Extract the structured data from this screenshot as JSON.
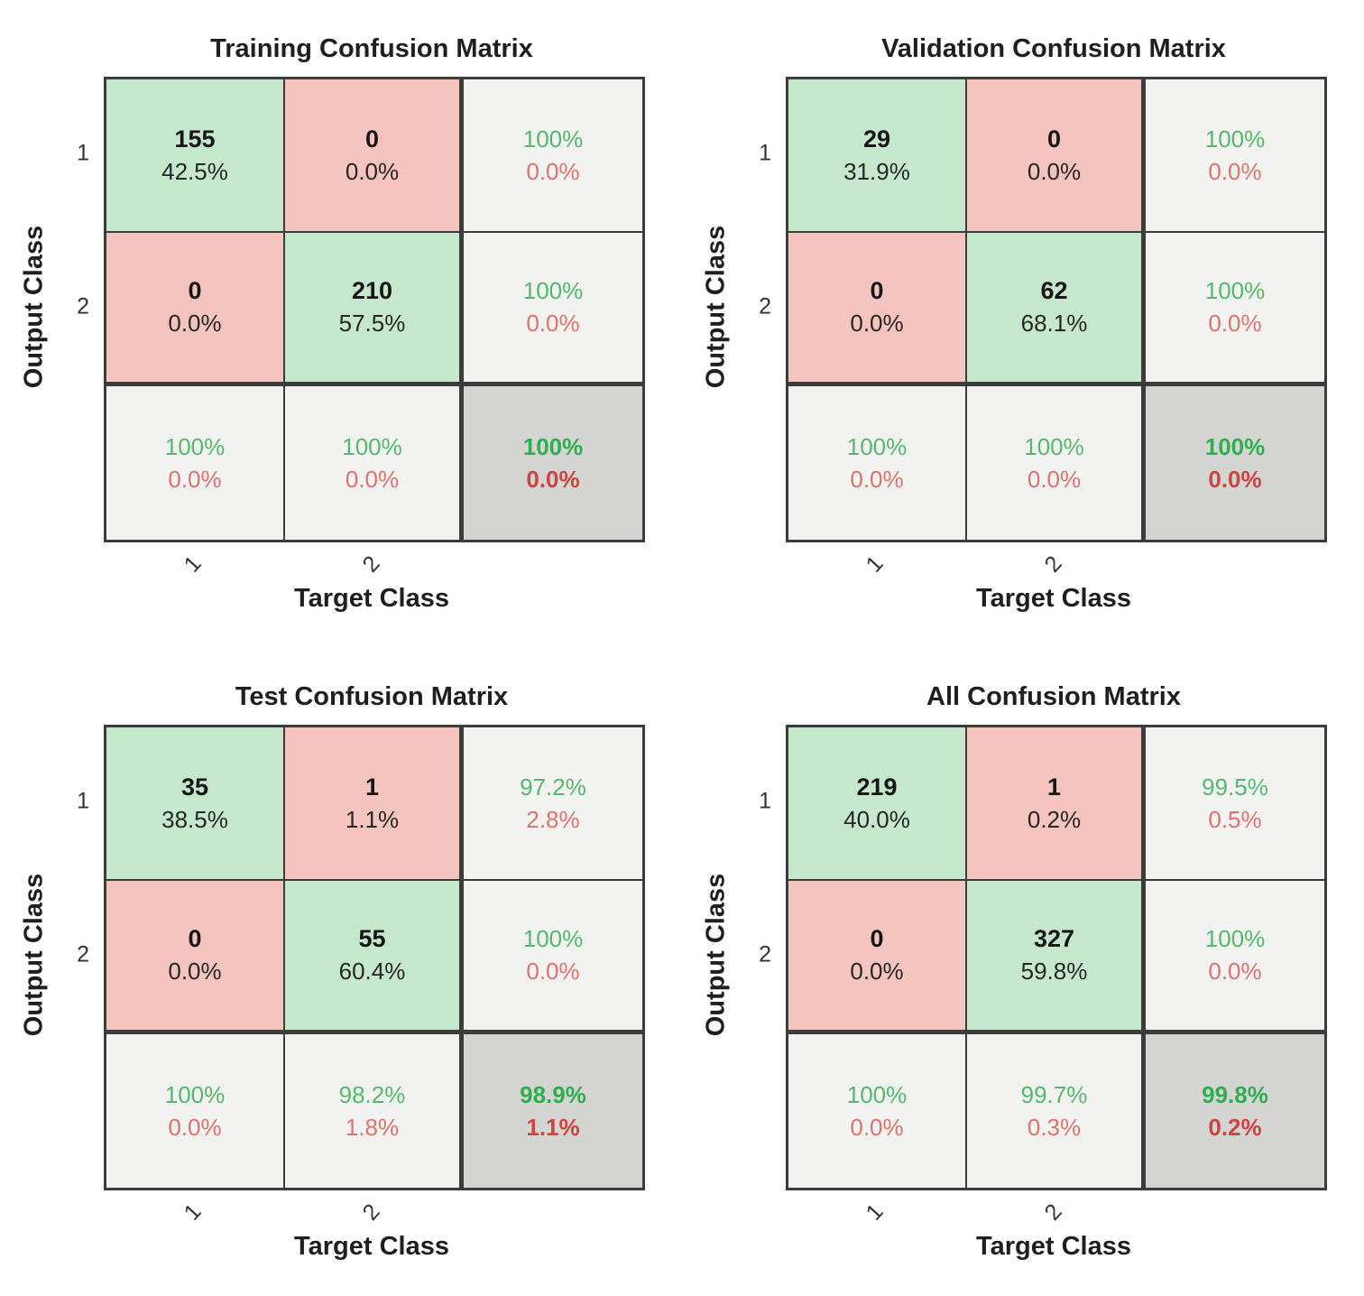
{
  "colors": {
    "green_cell": "#c5e8cd",
    "pink_cell": "#f5c4be",
    "gray_cell": "#f2f2f1",
    "dark_gray_cell": "#d4d4d3",
    "border": "#3c3c3c",
    "green_text": "#53ba6b",
    "red_text": "#dd736d",
    "green_text_bold": "#2fae4f",
    "red_text_bold": "#cd453e",
    "ink": "#1f1f1f"
  },
  "axis": {
    "x_label": "Target Class",
    "y_label": "Output Class",
    "x_ticks": [
      "1",
      "2"
    ],
    "y_ticks": [
      "1",
      "2"
    ]
  },
  "panels": [
    {
      "title": "Training Confusion Matrix",
      "cells": {
        "r0c0": {
          "count": "155",
          "pct": "42.5%"
        },
        "r0c1": {
          "count": "0",
          "pct": "0.0%"
        },
        "r0c2": {
          "green": "100%",
          "red": "0.0%"
        },
        "r1c0": {
          "count": "0",
          "pct": "0.0%"
        },
        "r1c1": {
          "count": "210",
          "pct": "57.5%"
        },
        "r1c2": {
          "green": "100%",
          "red": "0.0%"
        },
        "r2c0": {
          "green": "100%",
          "red": "0.0%"
        },
        "r2c1": {
          "green": "100%",
          "red": "0.0%"
        },
        "r2c2": {
          "green": "100%",
          "red": "0.0%"
        }
      }
    },
    {
      "title": "Validation Confusion Matrix",
      "cells": {
        "r0c0": {
          "count": "29",
          "pct": "31.9%"
        },
        "r0c1": {
          "count": "0",
          "pct": "0.0%"
        },
        "r0c2": {
          "green": "100%",
          "red": "0.0%"
        },
        "r1c0": {
          "count": "0",
          "pct": "0.0%"
        },
        "r1c1": {
          "count": "62",
          "pct": "68.1%"
        },
        "r1c2": {
          "green": "100%",
          "red": "0.0%"
        },
        "r2c0": {
          "green": "100%",
          "red": "0.0%"
        },
        "r2c1": {
          "green": "100%",
          "red": "0.0%"
        },
        "r2c2": {
          "green": "100%",
          "red": "0.0%"
        }
      }
    },
    {
      "title": "Test Confusion Matrix",
      "cells": {
        "r0c0": {
          "count": "35",
          "pct": "38.5%"
        },
        "r0c1": {
          "count": "1",
          "pct": "1.1%"
        },
        "r0c2": {
          "green": "97.2%",
          "red": "2.8%"
        },
        "r1c0": {
          "count": "0",
          "pct": "0.0%"
        },
        "r1c1": {
          "count": "55",
          "pct": "60.4%"
        },
        "r1c2": {
          "green": "100%",
          "red": "0.0%"
        },
        "r2c0": {
          "green": "100%",
          "red": "0.0%"
        },
        "r2c1": {
          "green": "98.2%",
          "red": "1.8%"
        },
        "r2c2": {
          "green": "98.9%",
          "red": "1.1%"
        }
      }
    },
    {
      "title": "All Confusion Matrix",
      "cells": {
        "r0c0": {
          "count": "219",
          "pct": "40.0%"
        },
        "r0c1": {
          "count": "1",
          "pct": "0.2%"
        },
        "r0c2": {
          "green": "99.5%",
          "red": "0.5%"
        },
        "r1c0": {
          "count": "0",
          "pct": "0.0%"
        },
        "r1c1": {
          "count": "327",
          "pct": "59.8%"
        },
        "r1c2": {
          "green": "100%",
          "red": "0.0%"
        },
        "r2c0": {
          "green": "100%",
          "red": "0.0%"
        },
        "r2c1": {
          "green": "99.7%",
          "red": "0.3%"
        },
        "r2c2": {
          "green": "99.8%",
          "red": "0.2%"
        }
      }
    }
  ],
  "chart_data": [
    {
      "type": "heatmap",
      "title": "Training Confusion Matrix",
      "xlabel": "Target Class",
      "ylabel": "Output Class",
      "classes": [
        "1",
        "2"
      ],
      "counts": [
        [
          155,
          0
        ],
        [
          0,
          210
        ]
      ],
      "cell_pct": [
        [
          "42.5%",
          "0.0%"
        ],
        [
          "0.0%",
          "57.5%"
        ]
      ],
      "row_summary_green_red": [
        [
          "100%",
          "0.0%"
        ],
        [
          "100%",
          "0.0%"
        ]
      ],
      "col_summary_green_red": [
        [
          "100%",
          "0.0%"
        ],
        [
          "100%",
          "0.0%"
        ]
      ],
      "overall_green_red": [
        "100%",
        "0.0%"
      ]
    },
    {
      "type": "heatmap",
      "title": "Validation Confusion Matrix",
      "xlabel": "Target Class",
      "ylabel": "Output Class",
      "classes": [
        "1",
        "2"
      ],
      "counts": [
        [
          29,
          0
        ],
        [
          0,
          62
        ]
      ],
      "cell_pct": [
        [
          "31.9%",
          "0.0%"
        ],
        [
          "0.0%",
          "68.1%"
        ]
      ],
      "row_summary_green_red": [
        [
          "100%",
          "0.0%"
        ],
        [
          "100%",
          "0.0%"
        ]
      ],
      "col_summary_green_red": [
        [
          "100%",
          "0.0%"
        ],
        [
          "100%",
          "0.0%"
        ]
      ],
      "overall_green_red": [
        "100%",
        "0.0%"
      ]
    },
    {
      "type": "heatmap",
      "title": "Test Confusion Matrix",
      "xlabel": "Target Class",
      "ylabel": "Output Class",
      "classes": [
        "1",
        "2"
      ],
      "counts": [
        [
          35,
          1
        ],
        [
          0,
          55
        ]
      ],
      "cell_pct": [
        [
          "38.5%",
          "1.1%"
        ],
        [
          "0.0%",
          "60.4%"
        ]
      ],
      "row_summary_green_red": [
        [
          "97.2%",
          "2.8%"
        ],
        [
          "100%",
          "0.0%"
        ]
      ],
      "col_summary_green_red": [
        [
          "100%",
          "0.0%"
        ],
        [
          "98.2%",
          "1.8%"
        ]
      ],
      "overall_green_red": [
        "98.9%",
        "1.1%"
      ]
    },
    {
      "type": "heatmap",
      "title": "All Confusion Matrix",
      "xlabel": "Target Class",
      "ylabel": "Output Class",
      "classes": [
        "1",
        "2"
      ],
      "counts": [
        [
          219,
          1
        ],
        [
          0,
          327
        ]
      ],
      "cell_pct": [
        [
          "40.0%",
          "0.2%"
        ],
        [
          "0.0%",
          "59.8%"
        ]
      ],
      "row_summary_green_red": [
        [
          "99.5%",
          "0.5%"
        ],
        [
          "100%",
          "0.0%"
        ]
      ],
      "col_summary_green_red": [
        [
          "100%",
          "0.0%"
        ],
        [
          "99.7%",
          "0.3%"
        ]
      ],
      "overall_green_red": [
        "99.8%",
        "0.2%"
      ]
    }
  ]
}
